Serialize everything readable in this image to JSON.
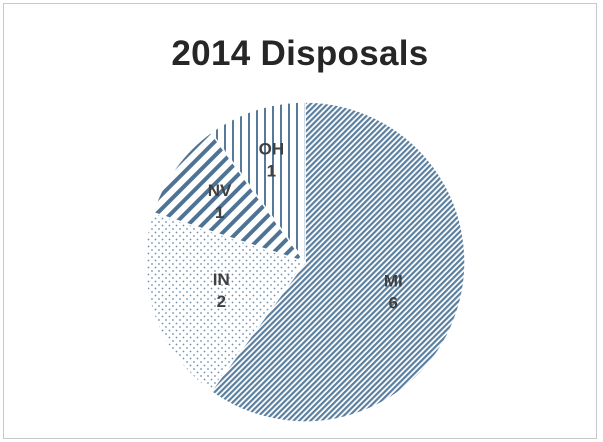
{
  "chart_data": {
    "type": "pie",
    "title": "2014 Disposals",
    "categories": [
      "MI",
      "IN",
      "NV",
      "OH"
    ],
    "values": [
      6,
      2,
      1,
      1
    ],
    "start_category": "MI",
    "direction": "clockwise",
    "legend": "none",
    "slice_styles": [
      {
        "category": "MI",
        "pattern": "fine-diagonal",
        "color": "#5b7f9f"
      },
      {
        "category": "IN",
        "pattern": "dots",
        "color": "#6f8fad"
      },
      {
        "category": "NV",
        "pattern": "wide-diagonal",
        "color": "#4f7394"
      },
      {
        "category": "OH",
        "pattern": "vertical-lines",
        "color": "#557a9b"
      }
    ]
  }
}
